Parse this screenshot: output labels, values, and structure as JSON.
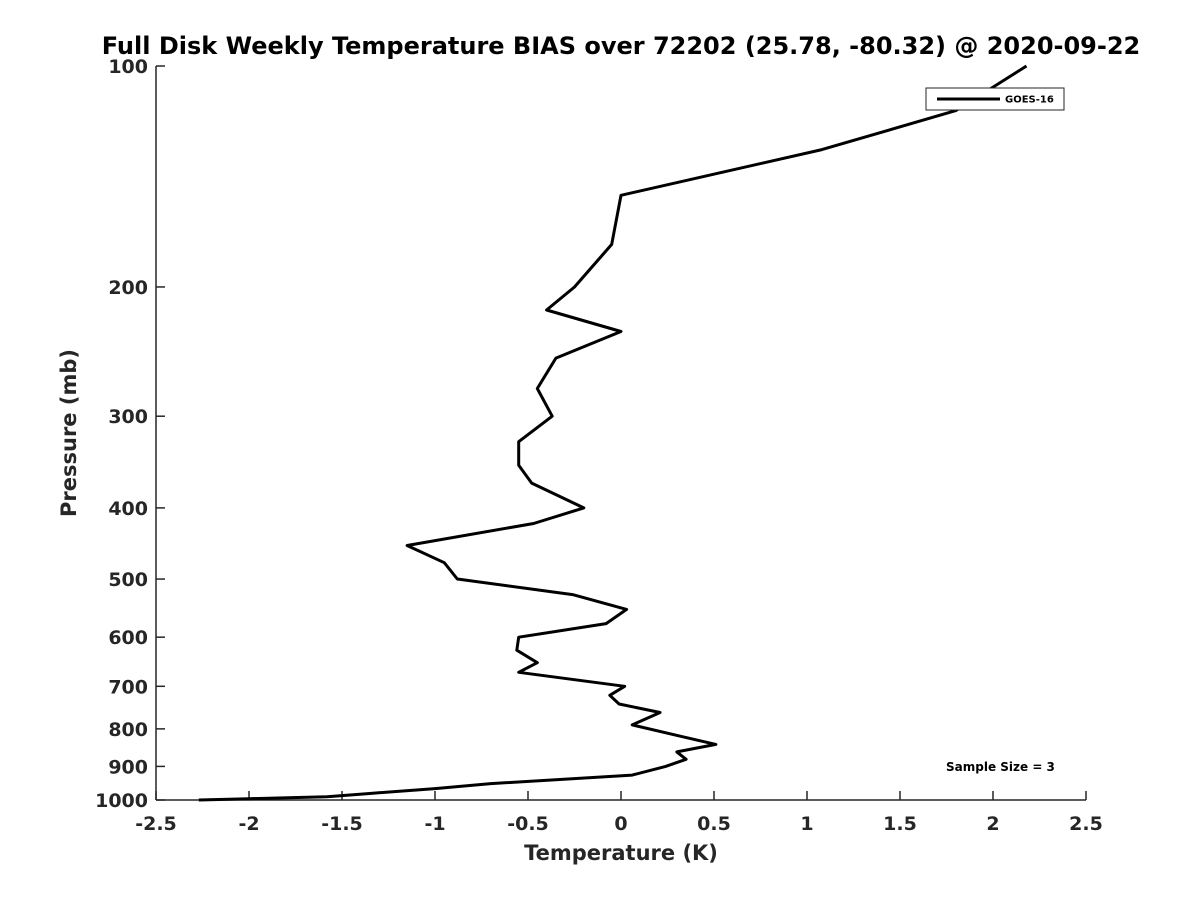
{
  "chart_data": {
    "type": "line",
    "title": "Full Disk Weekly Temperature BIAS over 72202 (25.78, -80.32) @ 2020-09-22",
    "xlabel": "Temperature (K)",
    "ylabel": "Pressure (mb)",
    "xlim": [
      -2.5,
      2.5
    ],
    "ylim": [
      100,
      1000
    ],
    "yscale": "log",
    "yaxis_reversed": true,
    "grid": false,
    "xticks": [
      -2.5,
      -2,
      -1.5,
      -1,
      -0.5,
      0,
      0.5,
      1,
      1.5,
      2,
      2.5
    ],
    "xtick_labels": [
      "-2.5",
      "-2",
      "-1.5",
      "-1",
      "-0.5",
      "0",
      "0.5",
      "1",
      "1.5",
      "2",
      "2.5"
    ],
    "yticks": [
      100,
      200,
      300,
      400,
      500,
      600,
      700,
      800,
      900,
      1000
    ],
    "ytick_labels": [
      "100",
      "200",
      "300",
      "400",
      "500",
      "600",
      "700",
      "800",
      "900",
      "1000"
    ],
    "legend_position": "top-right",
    "series": [
      {
        "name": "GOES-16",
        "color": "#000000",
        "points": [
          {
            "x": 2.18,
            "p": 100
          },
          {
            "x": 1.8,
            "p": 115
          },
          {
            "x": 1.08,
            "p": 130
          },
          {
            "x": 0.0,
            "p": 150
          },
          {
            "x": -0.05,
            "p": 175
          },
          {
            "x": -0.25,
            "p": 200
          },
          {
            "x": -0.4,
            "p": 215
          },
          {
            "x": 0.0,
            "p": 230
          },
          {
            "x": -0.35,
            "p": 250
          },
          {
            "x": -0.45,
            "p": 275
          },
          {
            "x": -0.37,
            "p": 300
          },
          {
            "x": -0.55,
            "p": 325
          },
          {
            "x": -0.55,
            "p": 350
          },
          {
            "x": -0.48,
            "p": 370
          },
          {
            "x": -0.2,
            "p": 400
          },
          {
            "x": -0.47,
            "p": 420
          },
          {
            "x": -1.15,
            "p": 450
          },
          {
            "x": -0.95,
            "p": 475
          },
          {
            "x": -0.88,
            "p": 500
          },
          {
            "x": -0.26,
            "p": 525
          },
          {
            "x": 0.03,
            "p": 550
          },
          {
            "x": -0.08,
            "p": 575
          },
          {
            "x": -0.55,
            "p": 600
          },
          {
            "x": -0.56,
            "p": 625
          },
          {
            "x": -0.45,
            "p": 650
          },
          {
            "x": -0.55,
            "p": 670
          },
          {
            "x": 0.02,
            "p": 700
          },
          {
            "x": -0.06,
            "p": 720
          },
          {
            "x": -0.01,
            "p": 740
          },
          {
            "x": 0.21,
            "p": 760
          },
          {
            "x": 0.06,
            "p": 790
          },
          {
            "x": 0.33,
            "p": 820
          },
          {
            "x": 0.51,
            "p": 840
          },
          {
            "x": 0.3,
            "p": 860
          },
          {
            "x": 0.35,
            "p": 880
          },
          {
            "x": 0.24,
            "p": 900
          },
          {
            "x": 0.06,
            "p": 925
          },
          {
            "x": -0.7,
            "p": 950
          },
          {
            "x": -1.0,
            "p": 965
          },
          {
            "x": -1.36,
            "p": 980
          },
          {
            "x": -1.58,
            "p": 990
          },
          {
            "x": -2.0,
            "p": 996
          },
          {
            "x": -2.27,
            "p": 1000
          }
        ]
      }
    ],
    "annotations": [
      "Sample Size = 3"
    ]
  }
}
